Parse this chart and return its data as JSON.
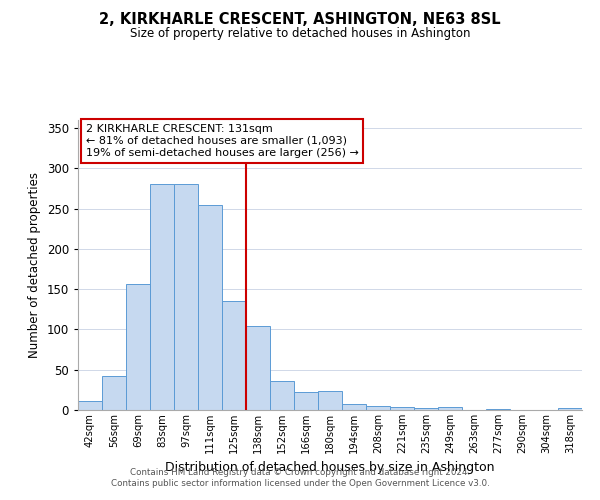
{
  "title": "2, KIRKHARLE CRESCENT, ASHINGTON, NE63 8SL",
  "subtitle": "Size of property relative to detached houses in Ashington",
  "xlabel": "Distribution of detached houses by size in Ashington",
  "ylabel": "Number of detached properties",
  "bar_labels": [
    "42sqm",
    "56sqm",
    "69sqm",
    "83sqm",
    "97sqm",
    "111sqm",
    "125sqm",
    "138sqm",
    "152sqm",
    "166sqm",
    "180sqm",
    "194sqm",
    "208sqm",
    "221sqm",
    "235sqm",
    "249sqm",
    "263sqm",
    "277sqm",
    "290sqm",
    "304sqm",
    "318sqm"
  ],
  "bar_values": [
    11,
    42,
    157,
    280,
    281,
    255,
    135,
    104,
    36,
    22,
    24,
    7,
    5,
    4,
    2,
    4,
    0,
    1,
    0,
    0,
    2
  ],
  "bar_color": "#c6d9f0",
  "bar_edge_color": "#5b9bd5",
  "vline_x": 6.5,
  "vline_color": "#cc0000",
  "ylim": [
    0,
    360
  ],
  "yticks": [
    0,
    50,
    100,
    150,
    200,
    250,
    300,
    350
  ],
  "annotation_title": "2 KIRKHARLE CRESCENT: 131sqm",
  "annotation_line1": "← 81% of detached houses are smaller (1,093)",
  "annotation_line2": "19% of semi-detached houses are larger (256) →",
  "annotation_box_color": "#ffffff",
  "annotation_box_edge": "#cc0000",
  "footer_line1": "Contains HM Land Registry data © Crown copyright and database right 2024.",
  "footer_line2": "Contains public sector information licensed under the Open Government Licence v3.0.",
  "background_color": "#ffffff",
  "grid_color": "#d0d8e8"
}
